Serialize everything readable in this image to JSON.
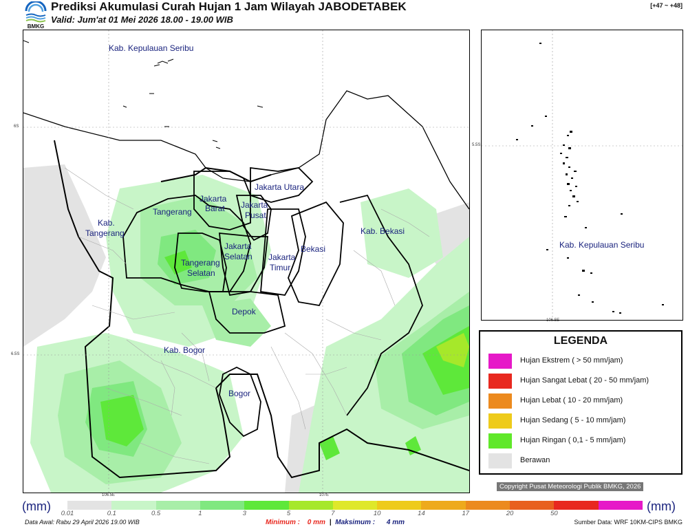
{
  "header": {
    "title": "Prediksi Akumulasi Curah Hujan 1 Jam Wilayah JABODETABEK",
    "valid": "Valid: Jum'at 01 Mei 2026 18.00 - 19.00 WIB",
    "range": "[+47 ~ +48]",
    "logo_text": "BMKG"
  },
  "map": {
    "regions": [
      {
        "name": "Kab. Kepulauan Seribu"
      },
      {
        "name": "Jakarta Utara"
      },
      {
        "name": "Jakarta"
      },
      {
        "name": "Barat"
      },
      {
        "name": "Jakarta"
      },
      {
        "name": "Pusat"
      },
      {
        "name": "Tangerang"
      },
      {
        "name": "Kab."
      },
      {
        "name": "Tangerang"
      },
      {
        "name": "Jakarta"
      },
      {
        "name": "Selatan"
      },
      {
        "name": "Tangerang"
      },
      {
        "name": "Selatan"
      },
      {
        "name": "Jakarta"
      },
      {
        "name": "Timur"
      },
      {
        "name": "Bekasi"
      },
      {
        "name": "Kab. Bekasi"
      },
      {
        "name": "Depok"
      },
      {
        "name": "Kab. Bogor"
      },
      {
        "name": "Bogor"
      }
    ],
    "lat_ticks": [
      "6S",
      "6.5S"
    ],
    "lon_ticks": [
      "106.5E",
      "107E"
    ]
  },
  "inset": {
    "label": "Kab. Kepulauan Seribu",
    "lat_tick": "5.5S",
    "lon_tick": "106.5E"
  },
  "legend": {
    "title": "LEGENDA",
    "items": [
      {
        "label": "Hujan Ekstrem ( > 50 mm/jam)",
        "color": "#e619c8"
      },
      {
        "label": "Hujan Sangat Lebat ( 20 - 50 mm/jam)",
        "color": "#e8281f"
      },
      {
        "label": "Hujan Lebat ( 10 - 20 mm/jam)",
        "color": "#ec8a1e"
      },
      {
        "label": "Hujan Sedang ( 5 - 10 mm/jam)",
        "color": "#eecb1b"
      },
      {
        "label": "Hujan Ringan ( 0,1 - 5 mm/jam)",
        "color": "#60e82a"
      },
      {
        "label": "Berawan",
        "color": "#e3e3e3"
      }
    ]
  },
  "colorbar": {
    "unit": "(mm)",
    "ticks": [
      "0.01",
      "0.1",
      "0.5",
      "1",
      "3",
      "5",
      "7",
      "10",
      "14",
      "17",
      "20",
      "50"
    ],
    "colors": [
      "#e3e3e3",
      "#c8f5c8",
      "#a8eea8",
      "#80e880",
      "#5ee83a",
      "#a6e82a",
      "#dfe82a",
      "#eecb1b",
      "#eeaa1c",
      "#ec8a1e",
      "#e8601f",
      "#e8281f",
      "#e619c8"
    ]
  },
  "footer": {
    "data_awal": "Data Awal: Rabu 29 April 2026 19.00 WIB",
    "minimum_label": "Minimum :",
    "minimum_value": "0 mm",
    "separator": "|",
    "maximum_label": "Maksimum :",
    "maximum_value": "4 mm",
    "source": "Sumber Data: WRF 10KM-CIPS BMKG",
    "copyright": "Copyright Pusat Meteorologi Publik BMKG, 2026"
  },
  "colors": {
    "label_blue": "#1a237e",
    "min_red": "#e8281f",
    "max_blue": "#1a237e"
  }
}
